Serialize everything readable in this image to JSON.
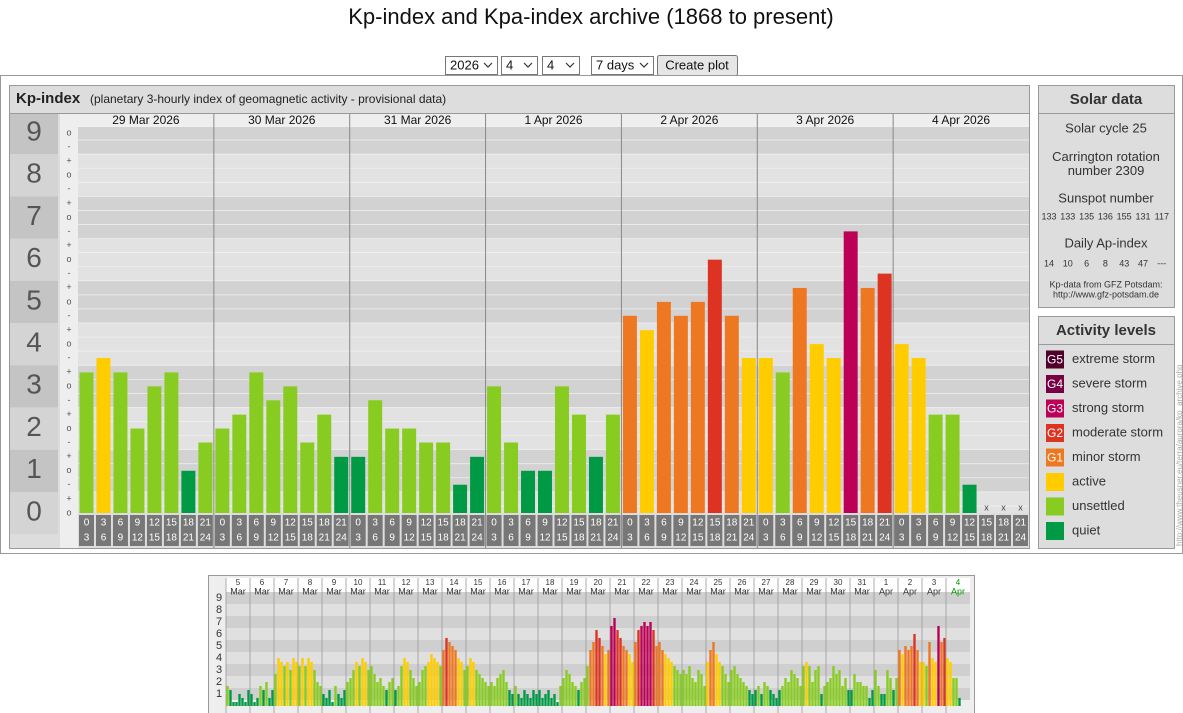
{
  "page_title": "Kp-index and Kpa-index archive (1868 to present)",
  "controls": {
    "year": "2026",
    "month": "4",
    "day": "4",
    "span": "7 days",
    "button": "Create plot"
  },
  "chart_data": {
    "type": "bar",
    "title": "Kp-index",
    "subtitle": "(planetary 3-hourly index of geomagnetic activity - provisional data)",
    "days": [
      "29 Mar 2026",
      "30 Mar 2026",
      "31 Mar 2026",
      "1 Apr 2026",
      "2 Apr 2026",
      "3 Apr 2026",
      "4 Apr 2026"
    ],
    "hours": [
      [
        "0",
        "3"
      ],
      [
        "3",
        "6"
      ],
      [
        "6",
        "9"
      ],
      [
        "9",
        "12"
      ],
      [
        "12",
        "15"
      ],
      [
        "15",
        "18"
      ],
      [
        "18",
        "21"
      ],
      [
        "21",
        "24"
      ]
    ],
    "values": [
      3.33,
      3.67,
      3.33,
      2.0,
      3.0,
      3.33,
      1.0,
      1.67,
      2.0,
      2.33,
      3.33,
      2.67,
      3.0,
      1.67,
      2.33,
      1.33,
      1.33,
      2.67,
      2.0,
      2.0,
      1.67,
      1.67,
      0.67,
      1.33,
      3.0,
      1.67,
      1.0,
      1.0,
      3.0,
      2.33,
      1.33,
      2.33,
      4.67,
      4.33,
      5.0,
      4.67,
      5.0,
      6.0,
      4.67,
      3.67,
      3.67,
      3.33,
      5.33,
      4.0,
      3.67,
      6.67,
      5.33,
      5.67,
      4.0,
      3.67,
      2.33,
      2.33,
      0.67,
      null,
      null,
      null
    ],
    "colors": [
      "#8c2",
      "#fc0",
      "#8c2",
      "#8c2",
      "#8c2",
      "#8c2",
      "#094",
      "#8c2",
      "#8c2",
      "#8c2",
      "#8c2",
      "#8c2",
      "#8c2",
      "#8c2",
      "#8c2",
      "#094",
      "#094",
      "#8c2",
      "#8c2",
      "#8c2",
      "#8c2",
      "#8c2",
      "#094",
      "#094",
      "#8c2",
      "#8c2",
      "#094",
      "#094",
      "#8c2",
      "#8c2",
      "#094",
      "#8c2",
      "#e72",
      "#fc0",
      "#e72",
      "#e72",
      "#e72",
      "#d32",
      "#e72",
      "#fc0",
      "#fc0",
      "#8c2",
      "#e72",
      "#fc0",
      "#fc0",
      "#b05",
      "#e72",
      "#d32",
      "#fc0",
      "#fc0",
      "#8c2",
      "#8c2",
      "#094",
      null,
      null,
      null
    ],
    "missing_label": "x",
    "ylim": [
      0,
      9
    ],
    "yticks": [
      0,
      1,
      2,
      3,
      4,
      5,
      6,
      7,
      8,
      9
    ],
    "yminor": [
      {
        "value": 0,
        "label": "o"
      },
      {
        "value": 0.333,
        "label": "+"
      },
      {
        "value": 0.667,
        "label": "-"
      },
      {
        "value": 1,
        "label": "o"
      },
      {
        "value": 1.333,
        "label": "+"
      },
      {
        "value": 1.667,
        "label": "-"
      },
      {
        "value": 2,
        "label": "o"
      },
      {
        "value": 2.333,
        "label": "+"
      },
      {
        "value": 2.667,
        "label": "-"
      },
      {
        "value": 3,
        "label": "o"
      },
      {
        "value": 3.333,
        "label": "+"
      },
      {
        "value": 3.667,
        "label": "-"
      },
      {
        "value": 4,
        "label": "o"
      },
      {
        "value": 4.333,
        "label": "+"
      },
      {
        "value": 4.667,
        "label": "-"
      },
      {
        "value": 5,
        "label": "o"
      },
      {
        "value": 5.333,
        "label": "+"
      },
      {
        "value": 5.667,
        "label": "-"
      },
      {
        "value": 6,
        "label": "o"
      },
      {
        "value": 6.333,
        "label": "+"
      },
      {
        "value": 6.667,
        "label": "-"
      },
      {
        "value": 7,
        "label": "o"
      },
      {
        "value": 7.333,
        "label": "+"
      },
      {
        "value": 7.667,
        "label": "-"
      },
      {
        "value": 8,
        "label": "o"
      },
      {
        "value": 8.333,
        "label": "+"
      },
      {
        "value": 8.667,
        "label": "-"
      },
      {
        "value": 9,
        "label": "o"
      }
    ]
  },
  "solar_data": {
    "title": "Solar data",
    "cycle": "Solar cycle 25",
    "carrington": "Carrington rotation number 2309",
    "sunspot_title": "Sunspot number",
    "sunspots": [
      133,
      133,
      135,
      136,
      155,
      131,
      117
    ],
    "ap_title": "Daily Ap-index",
    "ap": [
      14,
      10,
      6,
      8,
      43,
      47,
      "---"
    ],
    "source": "Kp-data from GFZ Potsdam:",
    "source_url": "http://www.gfz-potsdam.de"
  },
  "activity_levels": {
    "title": "Activity levels",
    "items": [
      {
        "code": "G5",
        "label": "extreme storm",
        "color": "#50002a"
      },
      {
        "code": "G4",
        "label": "severe storm",
        "color": "#704"
      },
      {
        "code": "G3",
        "label": "strong storm",
        "color": "#b05"
      },
      {
        "code": "G2",
        "label": "moderate storm",
        "color": "#d32"
      },
      {
        "code": "G1",
        "label": "minor storm",
        "color": "#e72"
      },
      {
        "label": "active",
        "color": "#fc0"
      },
      {
        "label": "unsettled",
        "color": "#8c2"
      },
      {
        "label": "quiet",
        "color": "#094"
      }
    ]
  },
  "side_url": "http://www.theusner.eu/terra/aurora/kp_archive.php",
  "overview": {
    "type": "bar",
    "days": [
      "5",
      "6",
      "7",
      "8",
      "9",
      "10",
      "11",
      "12",
      "13",
      "14",
      "15",
      "16",
      "17",
      "18",
      "19",
      "20",
      "21",
      "22",
      "23",
      "24",
      "25",
      "26",
      "27",
      "28",
      "29",
      "30",
      "31",
      "1",
      "2",
      "3",
      "4"
    ],
    "months": [
      "Mar",
      "Mar",
      "Mar",
      "Mar",
      "Mar",
      "Mar",
      "Mar",
      "Mar",
      "Mar",
      "Mar",
      "Mar",
      "Mar",
      "Mar",
      "Mar",
      "Mar",
      "Mar",
      "Mar",
      "Mar",
      "Mar",
      "Mar",
      "Mar",
      "Mar",
      "Mar",
      "Mar",
      "Mar",
      "Mar",
      "Mar",
      "Apr",
      "Apr",
      "Apr",
      "Apr"
    ],
    "highlight_color": "#090",
    "ylim": [
      0,
      9
    ],
    "yticks": [
      1,
      2,
      3,
      4,
      5,
      6,
      7,
      8,
      9
    ],
    "values": [
      [
        1.67,
        1.33,
        0.33,
        0.33,
        1.0,
        0.67,
        0.33,
        1.33
      ],
      [
        1.0,
        0.33,
        0.67,
        1.67,
        1.33,
        2.0,
        0.67,
        1.33
      ],
      [
        2.67,
        4.0,
        3.67,
        3.33,
        3.67,
        3.0,
        4.0,
        3.67
      ],
      [
        3.33,
        4.0,
        3.33,
        4.0,
        3.67,
        3.0,
        2.0,
        1.67
      ],
      [
        1.0,
        0.67,
        1.33,
        0.33,
        1.67,
        1.0,
        0.67,
        1.33
      ],
      [
        2.0,
        2.33,
        3.0,
        3.67,
        3.33,
        4.0,
        3.67,
        3.0
      ],
      [
        3.33,
        2.67,
        2.0,
        2.33,
        1.67,
        1.33,
        2.0,
        2.33
      ],
      [
        1.33,
        1.67,
        3.33,
        4.0,
        3.67,
        3.0,
        2.33,
        1.67
      ],
      [
        2.0,
        3.0,
        3.33,
        3.67,
        4.33,
        4.0,
        3.67,
        3.33
      ],
      [
        4.67,
        5.67,
        5.33,
        5.0,
        4.67,
        4.0,
        3.67,
        3.0
      ],
      [
        3.33,
        4.0,
        3.67,
        3.0,
        2.67,
        2.33,
        2.0,
        1.67
      ],
      [
        2.0,
        1.67,
        2.33,
        2.67,
        3.0,
        2.0,
        1.33,
        1.0
      ],
      [
        1.67,
        1.0,
        0.67,
        1.33,
        1.0,
        0.67,
        1.33,
        1.0
      ],
      [
        1.33,
        0.67,
        1.0,
        1.33,
        0.67,
        1.0,
        0.33,
        1.67
      ],
      [
        2.33,
        3.0,
        2.67,
        2.0,
        1.67,
        1.33,
        2.0,
        2.33
      ],
      [
        3.33,
        4.67,
        5.33,
        6.33,
        5.67,
        5.0,
        4.33,
        4.67
      ],
      [
        6.67,
        7.33,
        6.33,
        5.67,
        5.0,
        4.67,
        4.33,
        3.67
      ],
      [
        5.33,
        6.33,
        6.67,
        7.0,
        6.67,
        7.0,
        6.33,
        5.0
      ],
      [
        5.33,
        4.67,
        4.33,
        4.0,
        3.67,
        3.33,
        3.0,
        2.67
      ],
      [
        3.0,
        2.67,
        3.33,
        2.33,
        2.0,
        3.0,
        2.67,
        1.67
      ],
      [
        3.67,
        4.67,
        5.33,
        4.33,
        3.67,
        3.33,
        2.67,
        2.0
      ],
      [
        3.0,
        3.33,
        2.67,
        2.33,
        2.0,
        1.67,
        1.33,
        1.0
      ],
      [
        1.33,
        1.67,
        1.0,
        2.0,
        1.67,
        1.33,
        1.0,
        0.67
      ],
      [
        1.33,
        1.67,
        2.33,
        2.0,
        3.0,
        2.67,
        2.33,
        1.67
      ],
      [
        3.33,
        3.67,
        3.33,
        2.0,
        3.0,
        3.33,
        1.0,
        1.67
      ],
      [
        2.0,
        2.33,
        3.33,
        2.67,
        3.0,
        1.67,
        2.33,
        1.33
      ],
      [
        1.33,
        2.67,
        2.0,
        2.0,
        1.67,
        1.67,
        0.67,
        1.33
      ],
      [
        3.0,
        1.67,
        1.0,
        1.0,
        3.0,
        2.33,
        1.33,
        2.33
      ],
      [
        4.67,
        4.33,
        5.0,
        4.67,
        5.0,
        6.0,
        4.67,
        3.67
      ],
      [
        3.67,
        3.33,
        5.33,
        4.0,
        3.67,
        6.67,
        5.33,
        5.67
      ],
      [
        4.0,
        3.67,
        2.33,
        2.33,
        0.67,
        null,
        null,
        null
      ]
    ],
    "colors": [
      [
        "#8c2",
        "#094",
        "#094",
        "#094",
        "#094",
        "#094",
        "#094",
        "#094"
      ],
      [
        "#094",
        "#094",
        "#094",
        "#8c2",
        "#094",
        "#8c2",
        "#094",
        "#094"
      ],
      [
        "#8c2",
        "#fc0",
        "#fc0",
        "#8c2",
        "#fc0",
        "#8c2",
        "#fc0",
        "#fc0"
      ],
      [
        "#8c2",
        "#fc0",
        "#8c2",
        "#fc0",
        "#fc0",
        "#8c2",
        "#8c2",
        "#8c2"
      ],
      [
        "#094",
        "#094",
        "#094",
        "#094",
        "#8c2",
        "#094",
        "#094",
        "#094"
      ],
      [
        "#8c2",
        "#8c2",
        "#8c2",
        "#fc0",
        "#8c2",
        "#fc0",
        "#fc0",
        "#8c2"
      ],
      [
        "#8c2",
        "#8c2",
        "#8c2",
        "#8c2",
        "#8c2",
        "#094",
        "#8c2",
        "#8c2"
      ],
      [
        "#094",
        "#8c2",
        "#8c2",
        "#fc0",
        "#fc0",
        "#8c2",
        "#8c2",
        "#8c2"
      ],
      [
        "#8c2",
        "#8c2",
        "#8c2",
        "#fc0",
        "#fc0",
        "#fc0",
        "#fc0",
        "#8c2"
      ],
      [
        "#e72",
        "#d32",
        "#e72",
        "#e72",
        "#e72",
        "#fc0",
        "#fc0",
        "#8c2"
      ],
      [
        "#8c2",
        "#fc0",
        "#fc0",
        "#8c2",
        "#8c2",
        "#8c2",
        "#8c2",
        "#8c2"
      ],
      [
        "#8c2",
        "#8c2",
        "#8c2",
        "#8c2",
        "#8c2",
        "#8c2",
        "#094",
        "#094"
      ],
      [
        "#8c2",
        "#094",
        "#094",
        "#094",
        "#094",
        "#094",
        "#094",
        "#094"
      ],
      [
        "#094",
        "#094",
        "#094",
        "#094",
        "#094",
        "#094",
        "#094",
        "#8c2"
      ],
      [
        "#8c2",
        "#8c2",
        "#8c2",
        "#8c2",
        "#8c2",
        "#094",
        "#8c2",
        "#8c2"
      ],
      [
        "#8c2",
        "#e72",
        "#e72",
        "#d32",
        "#d32",
        "#e72",
        "#fc0",
        "#e72"
      ],
      [
        "#b05",
        "#b05",
        "#d32",
        "#d32",
        "#e72",
        "#e72",
        "#fc0",
        "#fc0"
      ],
      [
        "#e72",
        "#d32",
        "#b05",
        "#b05",
        "#b05",
        "#b05",
        "#d32",
        "#e72"
      ],
      [
        "#e72",
        "#e72",
        "#fc0",
        "#fc0",
        "#fc0",
        "#8c2",
        "#8c2",
        "#8c2"
      ],
      [
        "#8c2",
        "#8c2",
        "#8c2",
        "#8c2",
        "#8c2",
        "#8c2",
        "#8c2",
        "#8c2"
      ],
      [
        "#fc0",
        "#e72",
        "#e72",
        "#fc0",
        "#fc0",
        "#8c2",
        "#8c2",
        "#8c2"
      ],
      [
        "#8c2",
        "#8c2",
        "#8c2",
        "#8c2",
        "#8c2",
        "#8c2",
        "#094",
        "#094"
      ],
      [
        "#094",
        "#8c2",
        "#094",
        "#8c2",
        "#8c2",
        "#094",
        "#094",
        "#094"
      ],
      [
        "#094",
        "#8c2",
        "#8c2",
        "#8c2",
        "#8c2",
        "#8c2",
        "#8c2",
        "#8c2"
      ],
      [
        "#8c2",
        "#fc0",
        "#8c2",
        "#8c2",
        "#8c2",
        "#8c2",
        "#094",
        "#8c2"
      ],
      [
        "#8c2",
        "#8c2",
        "#8c2",
        "#8c2",
        "#8c2",
        "#8c2",
        "#8c2",
        "#094"
      ],
      [
        "#094",
        "#8c2",
        "#8c2",
        "#8c2",
        "#8c2",
        "#8c2",
        "#094",
        "#094"
      ],
      [
        "#8c2",
        "#8c2",
        "#094",
        "#094",
        "#8c2",
        "#8c2",
        "#094",
        "#8c2"
      ],
      [
        "#e72",
        "#fc0",
        "#e72",
        "#e72",
        "#e72",
        "#d32",
        "#e72",
        "#fc0"
      ],
      [
        "#fc0",
        "#8c2",
        "#e72",
        "#fc0",
        "#fc0",
        "#b05",
        "#e72",
        "#d32"
      ],
      [
        "#fc0",
        "#fc0",
        "#8c2",
        "#8c2",
        "#094",
        null,
        null,
        null
      ]
    ]
  }
}
